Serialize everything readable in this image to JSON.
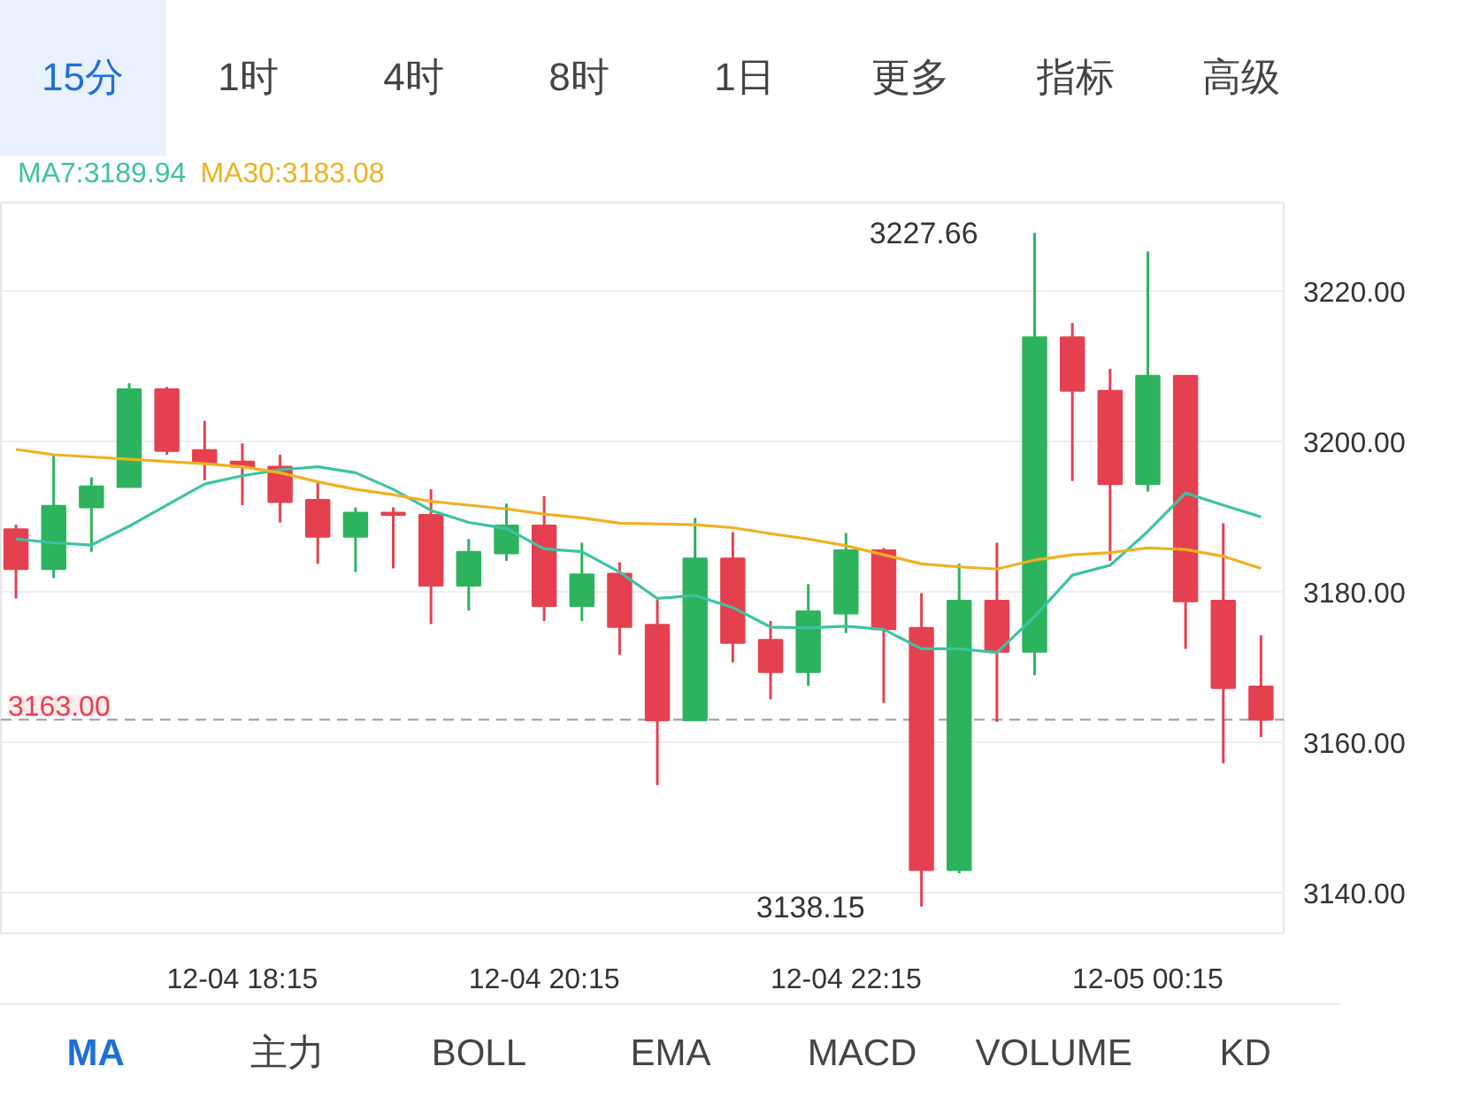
{
  "chart_data": {
    "type": "candlestick",
    "categories": [
      null,
      null,
      null,
      null,
      null,
      null,
      "12-04 18:15",
      null,
      null,
      null,
      null,
      null,
      null,
      null,
      "12-04 20:15",
      null,
      null,
      null,
      null,
      null,
      null,
      null,
      "12-04 22:15",
      null,
      null,
      null,
      null,
      null,
      null,
      null,
      "12-05 00:15",
      null,
      null,
      null
    ],
    "ohlc": [
      [
        3188.3,
        3188.9,
        3179.1,
        3183.0
      ],
      [
        3183.0,
        3198.2,
        3181.8,
        3191.4
      ],
      [
        3191.2,
        3195.2,
        3185.3,
        3194.0
      ],
      [
        3193.9,
        3207.7,
        3193.9,
        3206.9
      ],
      [
        3206.9,
        3207.2,
        3198.2,
        3198.7
      ],
      [
        3198.8,
        3202.7,
        3194.8,
        3197.1
      ],
      [
        3197.3,
        3199.7,
        3191.5,
        3196.6
      ],
      [
        3196.6,
        3198.2,
        3189.2,
        3191.9
      ],
      [
        3192.2,
        3194.5,
        3183.7,
        3187.3
      ],
      [
        3187.3,
        3191.2,
        3182.6,
        3190.5
      ],
      [
        3190.5,
        3191.2,
        3183.1,
        3190.2
      ],
      [
        3190.2,
        3193.6,
        3175.7,
        3180.8
      ],
      [
        3180.8,
        3187.0,
        3177.5,
        3185.3
      ],
      [
        3185.1,
        3191.7,
        3184.1,
        3188.8
      ],
      [
        3188.8,
        3192.7,
        3176.1,
        3178.1
      ],
      [
        3178.1,
        3186.5,
        3176.1,
        3182.3
      ],
      [
        3182.4,
        3183.9,
        3171.6,
        3175.3
      ],
      [
        3175.6,
        3178.9,
        3154.3,
        3162.9
      ],
      [
        3162.9,
        3189.8,
        3162.9,
        3184.4
      ],
      [
        3184.4,
        3187.9,
        3170.6,
        3173.2
      ],
      [
        3173.6,
        3176.1,
        3165.7,
        3169.3
      ],
      [
        3169.3,
        3181.0,
        3167.5,
        3177.4
      ],
      [
        3177.1,
        3187.8,
        3174.5,
        3185.5
      ],
      [
        3185.5,
        3185.8,
        3165.2,
        3175.0
      ],
      [
        3175.2,
        3179.8,
        3138.15,
        3143.0
      ],
      [
        3143.0,
        3183.7,
        3142.6,
        3178.8
      ],
      [
        3178.8,
        3186.5,
        3162.7,
        3172.0
      ],
      [
        3172.0,
        3227.66,
        3168.9,
        3213.8
      ],
      [
        3213.8,
        3215.7,
        3194.7,
        3206.7
      ],
      [
        3206.7,
        3209.6,
        3184.1,
        3194.3
      ],
      [
        3194.3,
        3225.2,
        3193.3,
        3208.7
      ],
      [
        3208.7,
        3208.7,
        3172.4,
        3178.7
      ],
      [
        3178.8,
        3189.1,
        3157.2,
        3167.2
      ],
      [
        3167.4,
        3174.2,
        3160.7,
        3163.0
      ]
    ],
    "colors": [
      "#e5404f",
      "#2db35d",
      "#2db35d",
      "#2db35d",
      "#e5404f",
      "#e5404f",
      "#e5404f",
      "#e5404f",
      "#e5404f",
      "#2db35d",
      "#e5404f",
      "#e5404f",
      "#2db35d",
      "#2db35d",
      "#e5404f",
      "#2db35d",
      "#e5404f",
      "#e5404f",
      "#2db35d",
      "#e5404f",
      "#e5404f",
      "#2db35d",
      "#2db35d",
      "#e5404f",
      "#e5404f",
      "#2db35d",
      "#e5404f",
      "#2db35d",
      "#e5404f",
      "#e5404f",
      "#2db35d",
      "#e5404f",
      "#e5404f",
      "#e5404f"
    ],
    "series": [
      {
        "type": "line",
        "name": "MA7:3189.94",
        "color": "#3cc3a3",
        "values": [
          3187.0,
          3186.5,
          3186.2,
          3188.7,
          3191.5,
          3194.3,
          3195.4,
          3196.2,
          3196.6,
          3195.8,
          3193.6,
          3190.8,
          3189.2,
          3188.4,
          3185.7,
          3185.3,
          3182.6,
          3179.1,
          3179.5,
          3177.9,
          3175.3,
          3175.2,
          3175.4,
          3175.0,
          3172.4,
          3172.4,
          3171.9,
          3176.7,
          3182.2,
          3183.5,
          3188.0,
          3193.1,
          3191.5,
          3189.94
        ]
      },
      {
        "type": "line",
        "name": "MA30:3183.08",
        "color": "#f0b020",
        "values": [
          3198.9,
          3198.2,
          3197.9,
          3197.6,
          3197.3,
          3197.0,
          3196.6,
          3195.8,
          3194.6,
          3193.6,
          3192.9,
          3192.0,
          3191.5,
          3191.0,
          3190.3,
          3189.8,
          3189.1,
          3189.0,
          3188.9,
          3188.5,
          3187.7,
          3187.0,
          3186.1,
          3184.9,
          3183.7,
          3183.3,
          3183.0,
          3184.2,
          3184.9,
          3185.2,
          3185.8,
          3185.6,
          3184.7,
          3183.08
        ]
      }
    ],
    "ylim": [
      3134.6,
      3231.7
    ],
    "yticks": [
      {
        "value": 3140,
        "label": "3140.00"
      },
      {
        "value": 3160,
        "label": "3160.00"
      },
      {
        "value": 3180,
        "label": "3180.00"
      },
      {
        "value": 3200,
        "label": "3200.00"
      },
      {
        "value": 3220,
        "label": "3220.00"
      }
    ],
    "grid": "y",
    "legend": "top left",
    "ref_lines": [
      {
        "axis": "y",
        "value": 3163.0,
        "label": "3163.00",
        "color": "#999999",
        "line_style": "dashed"
      }
    ],
    "annotations": [
      "15分",
      "1时",
      "4时",
      "8时",
      "1日",
      "更多",
      "指标",
      "高级",
      "MA",
      "主力",
      "BOLL",
      "EMA",
      "MACD",
      "VOLUME",
      "KD",
      "3227.66",
      "3138.15"
    ]
  }
}
